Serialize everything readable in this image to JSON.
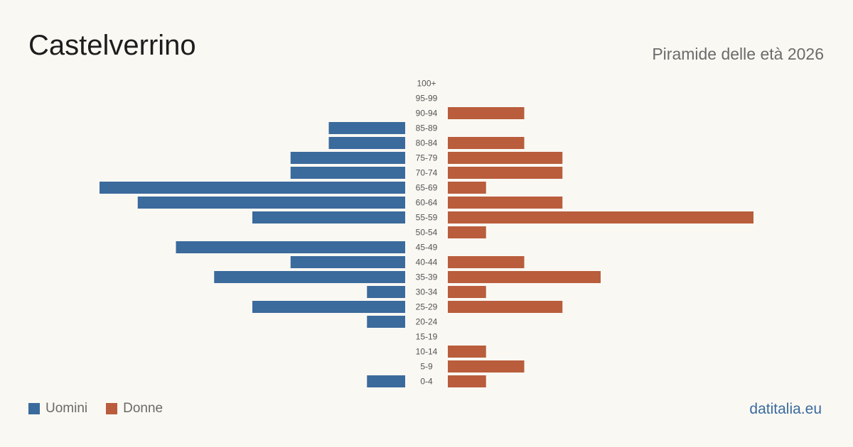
{
  "header": {
    "title": "Castelverrino",
    "subtitle": "Piramide delle età 2026"
  },
  "legend": {
    "men": "Uomini",
    "women": "Donne"
  },
  "brand": "datitalia.eu",
  "colors": {
    "men": "#3b6a9c",
    "women": "#b95d3c",
    "label": "#555555"
  },
  "chart_data": {
    "type": "bar",
    "orientation": "horizontal-pyramid",
    "title": "Castelverrino",
    "subtitle": "Piramide delle età 2026",
    "categories": [
      "100+",
      "95-99",
      "90-94",
      "85-89",
      "80-84",
      "75-79",
      "70-74",
      "65-69",
      "60-64",
      "55-59",
      "50-54",
      "45-49",
      "40-44",
      "35-39",
      "30-34",
      "25-29",
      "20-24",
      "15-19",
      "10-14",
      "5-9",
      "0-4"
    ],
    "series": [
      {
        "name": "Uomini",
        "values": [
          0,
          0,
          0,
          2,
          2,
          3,
          3,
          8,
          7,
          4,
          0,
          6,
          3,
          5,
          1,
          4,
          1,
          0,
          0,
          0,
          1
        ]
      },
      {
        "name": "Donne",
        "values": [
          0,
          0,
          2,
          0,
          2,
          3,
          3,
          1,
          3,
          8,
          1,
          0,
          2,
          4,
          1,
          3,
          0,
          0,
          1,
          2,
          1
        ]
      }
    ],
    "xlim": [
      0,
      8
    ],
    "grid": false,
    "legend_position": "bottom-left"
  }
}
